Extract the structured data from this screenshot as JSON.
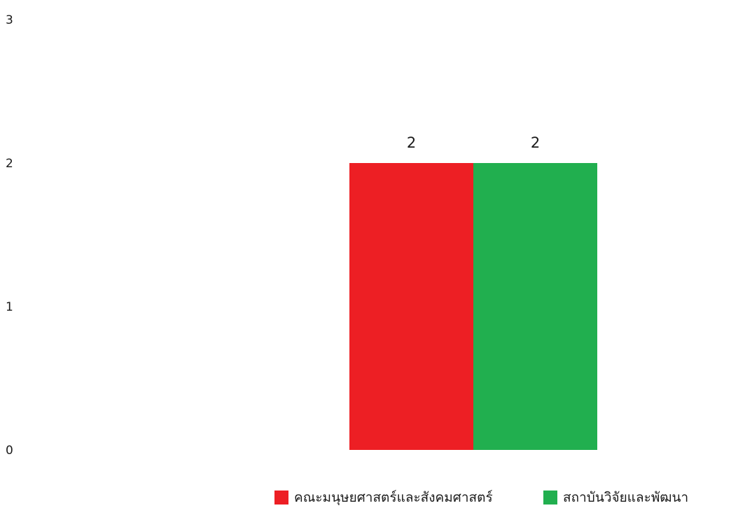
{
  "chart_data": {
    "type": "bar",
    "categories": [
      ""
    ],
    "series": [
      {
        "name": "คณะมนุษยศาสตร์และสังคมศาสตร์",
        "color": "#ed1f24",
        "values": [
          2
        ]
      },
      {
        "name": "สถาบันวิจัยและพัฒนา",
        "color": "#21af4f",
        "values": [
          2
        ]
      }
    ],
    "y_ticks": [
      "0",
      "1",
      "2",
      "3"
    ],
    "ylim": [
      0,
      3
    ],
    "data_labels": [
      "2",
      "2"
    ],
    "grid": false,
    "legend_position": "bottom"
  }
}
